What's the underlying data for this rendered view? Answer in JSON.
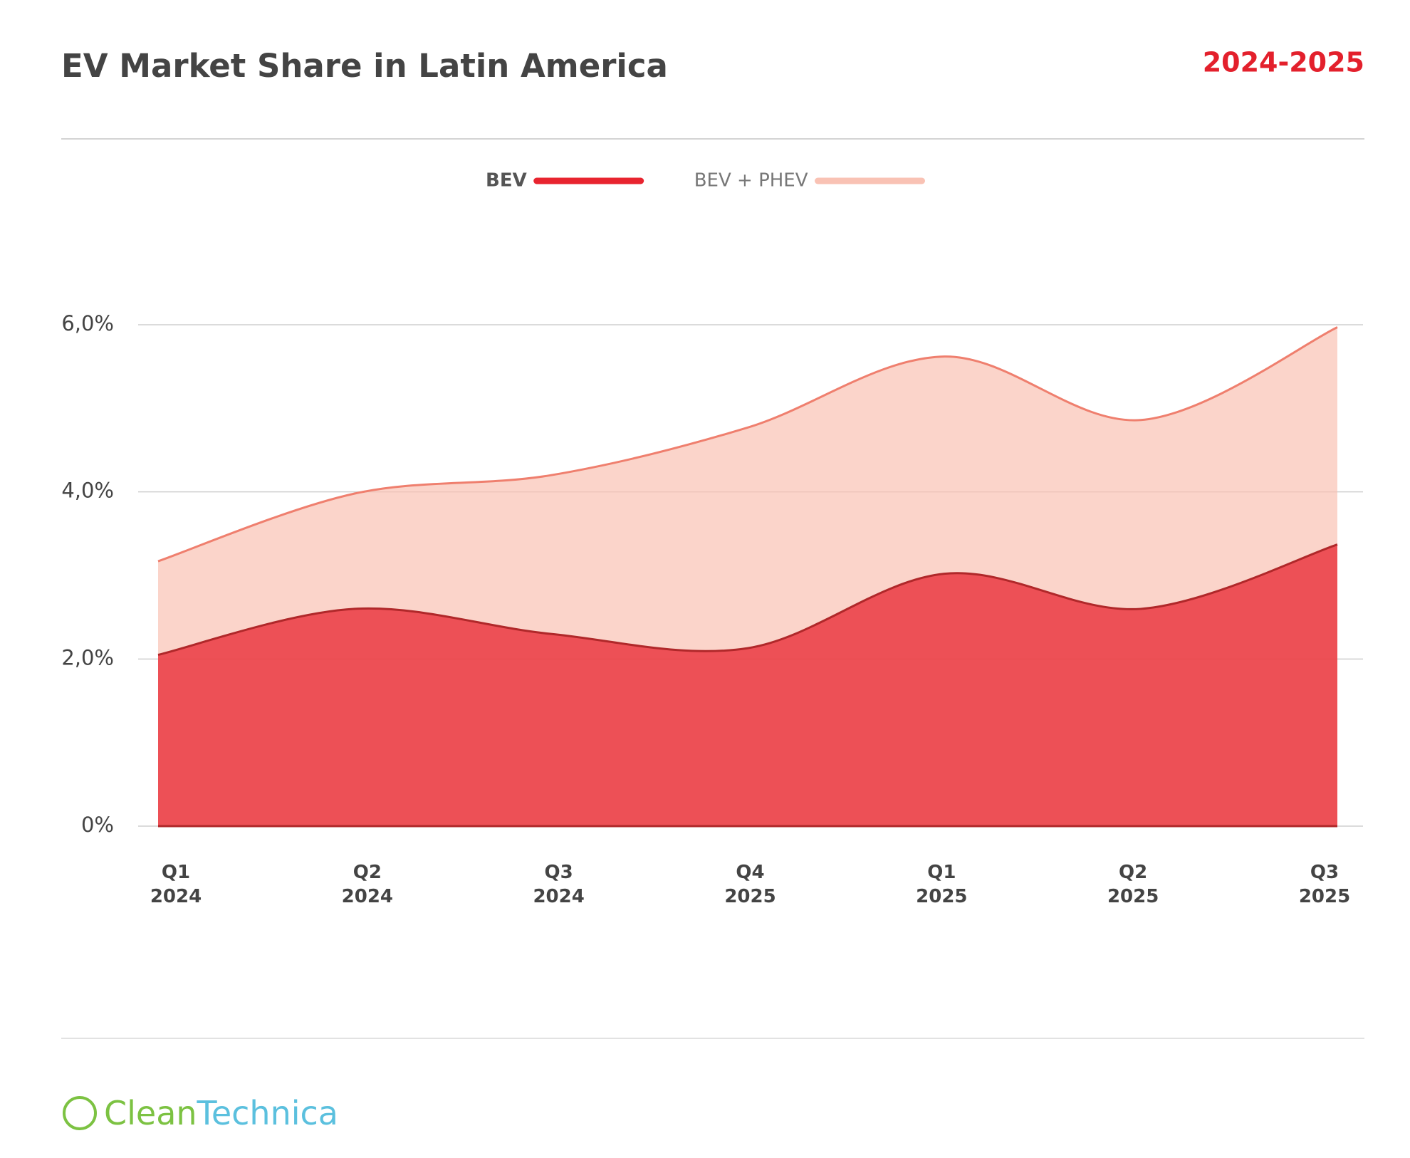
{
  "chart_data": {
    "type": "area",
    "title": "EV Market Share in Latin America",
    "subtitle": "2024-2025",
    "categories": [
      "Q1 2024",
      "Q2 2024",
      "Q3 2024",
      "Q4 2025",
      "Q1 2025",
      "Q2 2025",
      "Q3 2025"
    ],
    "series": [
      {
        "name": "BEV + PHEV",
        "color": "#f9c2b4",
        "line_color": "#ef7f6e",
        "values": [
          3.17,
          3.98,
          4.2,
          4.77,
          5.62,
          4.86,
          5.97
        ]
      },
      {
        "name": "BEV",
        "color": "#e8242f",
        "line_color": "#b0282a",
        "values": [
          2.05,
          2.6,
          2.3,
          2.13,
          3.02,
          2.6,
          3.37
        ]
      }
    ],
    "ylim": [
      0,
      6
    ],
    "yticks": [
      {
        "value": 0,
        "label": "0%"
      },
      {
        "value": 2,
        "label": "2,0%"
      },
      {
        "value": 4,
        "label": "4,0%"
      },
      {
        "value": 6,
        "label": "6,0%"
      }
    ],
    "grid": true
  },
  "footer_logo": {
    "part1": "Clean",
    "part2": "Technica"
  }
}
